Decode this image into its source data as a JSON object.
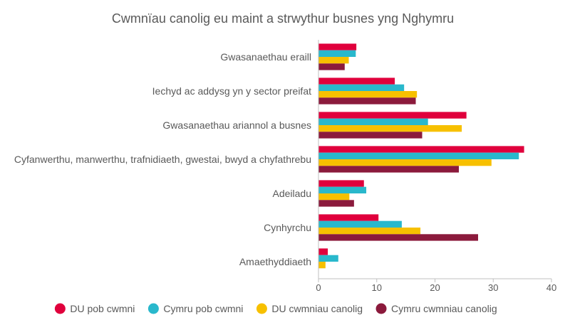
{
  "chart_data": {
    "type": "bar",
    "orientation": "horizontal",
    "title": "Cwmnïau canolig eu maint a strwythur busnes yng Nghymru",
    "categories": [
      "Gwasanaethau eraill",
      "Iechyd ac addysg yn y sector preifat",
      "Gwasanaethau ariannol a busnes",
      "Cyfanwerthu, manwerthu, trafnidiaeth, gwestai, bwyd a chyfathrebu",
      "Adeiladu",
      "Cynhyrchu",
      "Amaethyddiaeth"
    ],
    "series": [
      {
        "name": "DU pob cwmni",
        "color": "#e0003c",
        "values": [
          6.5,
          13.1,
          25.4,
          35.3,
          7.8,
          10.3,
          1.6
        ]
      },
      {
        "name": "Cymru pob cwmni",
        "color": "#29b8cc",
        "values": [
          6.4,
          14.7,
          18.8,
          34.4,
          8.2,
          14.3,
          3.4
        ]
      },
      {
        "name": "DU cwmniau canolig",
        "color": "#f7c000",
        "values": [
          5.2,
          16.9,
          24.6,
          29.7,
          5.3,
          17.5,
          1.2
        ]
      },
      {
        "name": "Cymru cwmniau canolig",
        "color": "#8b1a3c",
        "values": [
          4.5,
          16.7,
          17.8,
          24.1,
          6.1,
          27.4,
          0
        ]
      }
    ],
    "xlim": [
      0,
      40
    ],
    "xticks": [
      "0",
      "10",
      "20",
      "30",
      "40"
    ],
    "xlabel": "",
    "ylabel": "",
    "grid": false,
    "legend_position": "bottom"
  }
}
